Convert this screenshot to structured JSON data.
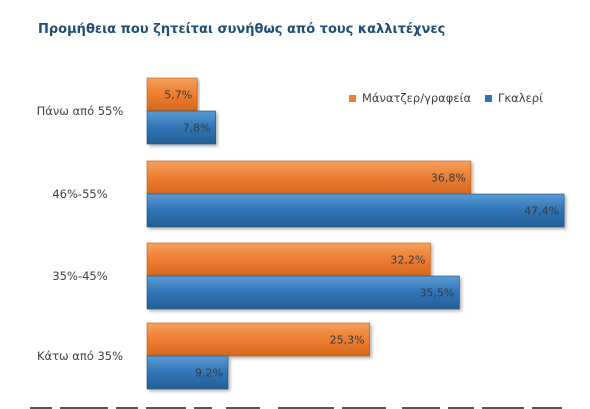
{
  "chart_data": {
    "type": "bar",
    "orientation": "horizontal",
    "title": "Προμήθεια που ζητείται συνήθως από τους καλλιτέχνες",
    "categories": [
      "Πάνω από 55%",
      "46%-55%",
      "35%-45%",
      "Κάτω από 35%"
    ],
    "series": [
      {
        "name": "Μάνατζερ/γραφεία",
        "color": "#ed7d31",
        "values": [
          5.7,
          36.8,
          32.2,
          25.3
        ],
        "labels": [
          "5,7%",
          "36,8%",
          "32,2%",
          "25,3%"
        ]
      },
      {
        "name": "Γκαλερί",
        "color": "#2e75b6",
        "values": [
          7.8,
          47.4,
          35.5,
          9.2
        ],
        "labels": [
          "7,8%",
          "47,4%",
          "35,5%",
          "9,2%"
        ]
      }
    ],
    "xlim": [
      0,
      50
    ],
    "grid": false,
    "legend_position": "top-right",
    "data_labels": "inside-end"
  }
}
